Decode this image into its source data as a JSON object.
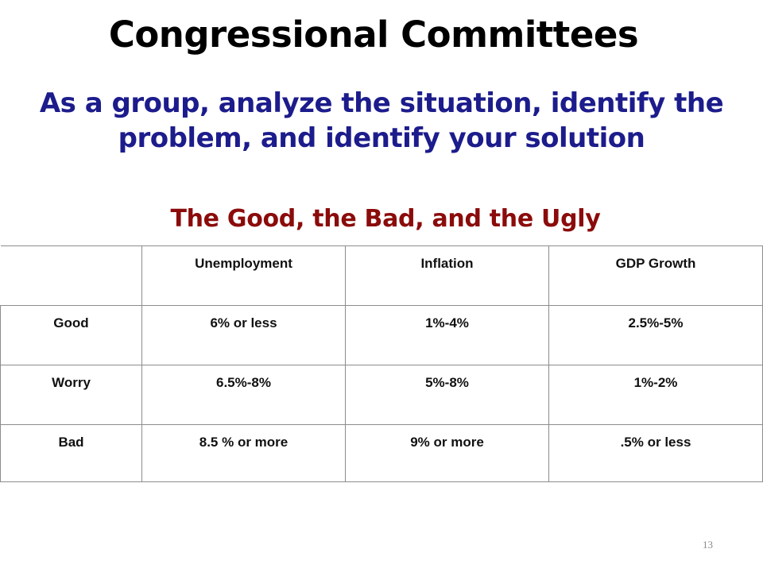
{
  "slide": {
    "title": "Congressional Committees",
    "subtitle": "As a group, analyze the situation, identify the problem, and identify your solution",
    "table_heading": "The Good, the Bad, and the Ugly",
    "page_number": "13"
  },
  "table": {
    "headers": [
      "",
      "Unemployment",
      "Inflation",
      "GDP Growth"
    ],
    "rows": [
      [
        "Good",
        "6% or less",
        "1%-4%",
        "2.5%-5%"
      ],
      [
        "Worry",
        "6.5%-8%",
        "5%-8%",
        "1%-2%"
      ],
      [
        "Bad",
        "8.5 % or more",
        "9% or more",
        ".5% or less"
      ]
    ]
  }
}
